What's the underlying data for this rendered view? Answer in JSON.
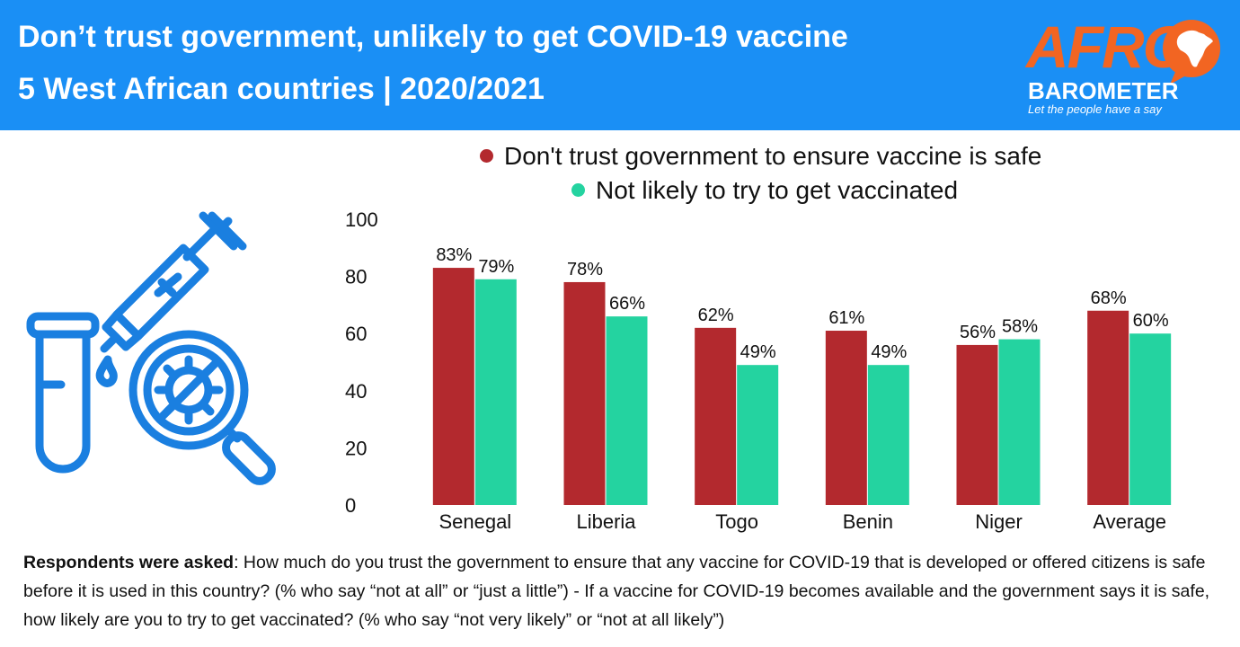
{
  "header": {
    "title_line1": "Don’t trust government, unlikely to get COVID-19 vaccine",
    "title_line2": "5 West African countries | 2020/2021",
    "background_color": "#1a8ff5"
  },
  "logo": {
    "afro": "AFRO",
    "barometer": "BAROMETER",
    "tagline": "Let the people have a say",
    "color": "#f26522"
  },
  "chart_data": {
    "type": "bar",
    "categories": [
      "Senegal",
      "Liberia",
      "Togo",
      "Benin",
      "Niger",
      "Average"
    ],
    "series": [
      {
        "name": "Don't trust government to ensure vaccine is safe",
        "color": "#b3292e",
        "values": [
          83,
          78,
          62,
          61,
          56,
          68
        ],
        "labels": [
          "83%",
          "78%",
          "62%",
          "61%",
          "56%",
          "68%"
        ]
      },
      {
        "name": "Not likely to try to get vaccinated",
        "color": "#24d3a0",
        "values": [
          79,
          66,
          49,
          49,
          58,
          60
        ],
        "labels": [
          "79%",
          "66%",
          "49%",
          "49%",
          "58%",
          "60%"
        ]
      }
    ],
    "y_ticks": [
      "0",
      "20",
      "40",
      "60",
      "80",
      "100"
    ],
    "ylim": [
      0,
      100
    ],
    "grid": false,
    "legend_position": "top"
  },
  "icon": {
    "name": "vaccine-test-tube-virus-icon",
    "color": "#1a7fe0"
  },
  "footnote": {
    "bold": "Respondents were asked",
    "text": ": How much do you trust the government to ensure that any vaccine for COVID-19 that is developed or offered citizens is safe before it is used in this country? (% who say “not at all” or “just a little”) - If  a vaccine for COVID-19 becomes available and the government says it is safe, how likely are you to try to get vaccinated? (% who say “not very likely” or “not at all likely”)"
  }
}
